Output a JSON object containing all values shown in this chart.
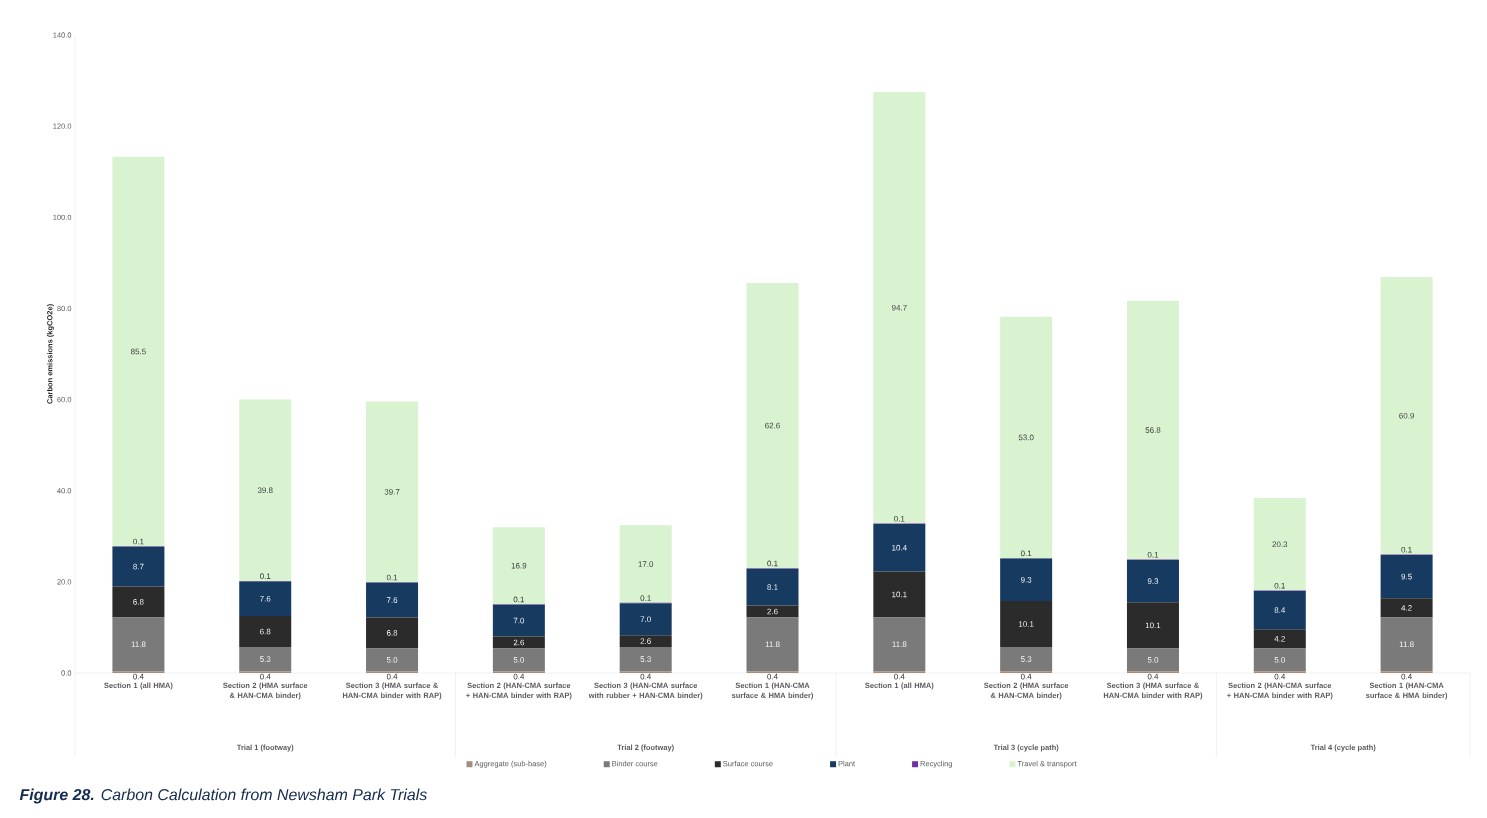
{
  "chart_data": {
    "type": "bar",
    "stacked": true,
    "title": "**Figure 28.** Carbon Calculation from Newsham Park Trials",
    "ylabel": "Carbon emissions (kgCO2e)",
    "categories": [
      "Section 1 (all HMA)",
      "Section 2 (HMA surface & HAN-CMA binder)",
      "Section 3 (HMA surface & HAN-CMA binder with RAP)",
      "Section 2 (HAN-CMA surface + HAN-CMA binder with RAP)",
      "Section 3 (HAN-CMA surface with rubber + HAN-CMA binder)",
      "Section 1 (HAN-CMA surface & HMA binder)",
      "Section 1 (all HMA)",
      "Section 2 (HMA surface & HAN-CMA binder)",
      "Section 3 (HMA surface & HAN-CMA binder with RAP)",
      "Section 2 (HAN-CMA surface + HAN-CMA binder with RAP)",
      "Section 1 (HAN-CMA surface & HMA binder)"
    ],
    "series": [
      {
        "name": "Aggregate (sub-base)",
        "color": "#a38d7d",
        "values": [
          0.4,
          0.4,
          0.4,
          0.4,
          0.4,
          0.4,
          0.4,
          0.4,
          0.4,
          0.4,
          0.4
        ],
        "value_labels": [
          "0.4",
          "0.4",
          "0.4",
          "0.4",
          "0.4",
          "0.4",
          "0.4",
          "0.4",
          "0.4",
          "0.4",
          "0.4"
        ]
      },
      {
        "name": "Binder course",
        "color": "#7a7a7a",
        "values": [
          11.8,
          5.3,
          5.0,
          5.0,
          5.3,
          11.8,
          11.8,
          5.3,
          5.0,
          5.0,
          11.8
        ],
        "value_labels": [
          "11.8",
          "5.3",
          "5.0",
          "5.0",
          "5.3",
          "11.8",
          "11.8",
          "5.3",
          "5.0",
          "5.0",
          "11.8"
        ]
      },
      {
        "name": "Surface course",
        "color": "#2b2b2b",
        "values": [
          6.8,
          6.8,
          6.8,
          2.6,
          2.6,
          2.6,
          10.1,
          10.1,
          10.1,
          4.2,
          4.2
        ],
        "value_labels": [
          "6.8",
          "6.8",
          "6.8",
          "2.6",
          "2.6",
          "2.6",
          "10.1",
          "10.1",
          "10.1",
          "4.2",
          "4.2"
        ]
      },
      {
        "name": "Plant",
        "color": "#173a61",
        "values": [
          8.7,
          7.6,
          7.6,
          7.0,
          7.0,
          8.1,
          10.4,
          9.3,
          9.3,
          8.4,
          9.5
        ],
        "value_labels": [
          "8.7",
          "7.6",
          "7.6",
          "7.0",
          "7.0",
          "8.1",
          "10.4",
          "9.3",
          "9.3",
          "8.4",
          "9.5"
        ]
      },
      {
        "name": "Recycling",
        "color": "#7030a0",
        "values": [
          0.1,
          0.1,
          0.1,
          0.1,
          0.1,
          0.1,
          0.1,
          0.1,
          0.1,
          0.1,
          0.1
        ],
        "value_labels": [
          "0.1",
          "0.1",
          "0.1",
          "0.1",
          "0.1",
          "0.1",
          "0.1",
          "0.1",
          "0.1",
          "0.1",
          "0.1"
        ]
      },
      {
        "name": "Travel & transport",
        "color": "#d9f2d0",
        "values": [
          85.5,
          39.8,
          39.7,
          16.9,
          17.0,
          62.6,
          94.7,
          53.0,
          56.8,
          20.3,
          60.9
        ],
        "value_labels": [
          "85.5",
          "39.8",
          "39.7",
          "16.9",
          "17.0",
          "62.6",
          "94.7",
          "53.0",
          "56.8",
          "20.3",
          "60.9"
        ]
      }
    ],
    "ylim": [
      0,
      140
    ],
    "yticks": [
      {
        "value": 0,
        "label": "0.0"
      },
      {
        "value": 20,
        "label": "20.0"
      },
      {
        "value": 40,
        "label": "40.0"
      },
      {
        "value": 60,
        "label": "60.0"
      },
      {
        "value": 80,
        "label": "80.0"
      },
      {
        "value": 100,
        "label": "100.0"
      },
      {
        "value": 120,
        "label": "120.0"
      },
      {
        "value": 140,
        "label": "140.0"
      }
    ],
    "grid": false,
    "legend": "bottom",
    "annotations": [
      "Trial 1 (footway)",
      "Trial 2 (footway)",
      "Trial 3 (cycle path)",
      "Trial 4 (cycle path)"
    ]
  }
}
